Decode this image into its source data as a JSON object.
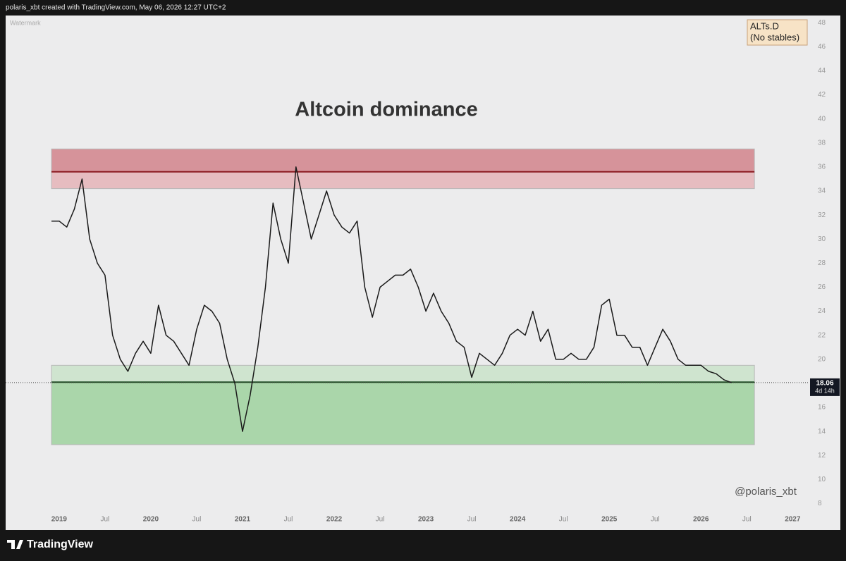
{
  "header": "polaris_xbt created with TradingView.com, May 06, 2026 12:27 UTC+2",
  "brand": "TradingView",
  "chart_data": {
    "type": "line",
    "title": "Altcoin dominance",
    "watermark": "Watermark",
    "symbol": "ALTs.D",
    "symbol_note": "(No stables)",
    "author": "@polaris_xbt",
    "color": "#1a1a1a",
    "last_price": 18.06,
    "countdown": "4d 14h",
    "x": [
      "2018-12",
      "2019-01",
      "2019-02",
      "2019-03",
      "2019-04",
      "2019-05",
      "2019-06",
      "2019-07",
      "2019-08",
      "2019-09",
      "2019-10",
      "2019-11",
      "2019-12",
      "2020-01",
      "2020-02",
      "2020-03",
      "2020-04",
      "2020-05",
      "2020-06",
      "2020-07",
      "2020-08",
      "2020-09",
      "2020-10",
      "2020-11",
      "2020-12",
      "2021-01",
      "2021-02",
      "2021-03",
      "2021-04",
      "2021-05",
      "2021-06",
      "2021-07",
      "2021-08",
      "2021-09",
      "2021-10",
      "2021-11",
      "2021-12",
      "2022-01",
      "2022-02",
      "2022-03",
      "2022-04",
      "2022-05",
      "2022-06",
      "2022-07",
      "2022-08",
      "2022-09",
      "2022-10",
      "2022-11",
      "2022-12",
      "2023-01",
      "2023-02",
      "2023-03",
      "2023-04",
      "2023-05",
      "2023-06",
      "2023-07",
      "2023-08",
      "2023-09",
      "2023-10",
      "2023-11",
      "2023-12",
      "2024-01",
      "2024-02",
      "2024-03",
      "2024-04",
      "2024-05",
      "2024-06",
      "2024-07",
      "2024-08",
      "2024-09",
      "2024-10",
      "2024-11",
      "2024-12",
      "2025-01",
      "2025-02",
      "2025-03",
      "2025-04",
      "2025-05",
      "2025-06",
      "2025-07",
      "2025-08",
      "2025-09",
      "2025-10",
      "2025-11",
      "2025-12",
      "2026-01",
      "2026-02",
      "2026-03",
      "2026-04",
      "2026-05"
    ],
    "values": [
      31.5,
      31.5,
      31,
      32.5,
      35,
      30,
      28,
      27,
      22,
      20,
      19,
      20.5,
      21.5,
      20.5,
      24.5,
      22,
      21.5,
      20.5,
      19.5,
      22.5,
      24.5,
      24,
      23,
      20,
      18,
      14,
      17,
      21,
      26,
      33,
      30,
      28,
      36,
      33,
      30,
      32,
      34,
      32,
      31,
      30.5,
      31.5,
      26,
      23.5,
      26,
      26.5,
      27,
      27,
      27.5,
      26,
      24,
      25.5,
      24,
      23,
      21.5,
      21,
      18.5,
      20.5,
      20,
      19.5,
      20.5,
      22,
      22.5,
      22,
      24,
      21.5,
      22.5,
      20,
      20,
      20.5,
      20,
      20,
      21,
      24.5,
      25,
      22,
      22,
      21,
      21,
      19.5,
      21,
      22.5,
      21.5,
      20,
      19.5,
      19.5,
      19.5,
      19,
      18.8,
      18.3,
      18.06
    ],
    "xlim": [
      "2018-06",
      "2027-03"
    ],
    "xticks": [
      {
        "value": "2019-01",
        "label": "2019"
      },
      {
        "value": "2019-07",
        "label": "Jul"
      },
      {
        "value": "2020-01",
        "label": "2020"
      },
      {
        "value": "2020-07",
        "label": "Jul"
      },
      {
        "value": "2021-01",
        "label": "2021"
      },
      {
        "value": "2021-07",
        "label": "Jul"
      },
      {
        "value": "2022-01",
        "label": "2022"
      },
      {
        "value": "2022-07",
        "label": "Jul"
      },
      {
        "value": "2023-01",
        "label": "2023"
      },
      {
        "value": "2023-07",
        "label": "Jul"
      },
      {
        "value": "2024-01",
        "label": "2024"
      },
      {
        "value": "2024-07",
        "label": "Jul"
      },
      {
        "value": "2025-01",
        "label": "2025"
      },
      {
        "value": "2025-07",
        "label": "Jul"
      },
      {
        "value": "2026-01",
        "label": "2026"
      },
      {
        "value": "2026-07",
        "label": "Jul"
      },
      {
        "value": "2027-01",
        "label": "2027"
      }
    ],
    "ylim": [
      5.8,
      48.6
    ],
    "yticks": [
      8,
      10,
      12,
      14,
      16,
      18,
      20,
      22,
      24,
      26,
      28,
      30,
      32,
      34,
      36,
      38,
      40,
      42,
      44,
      46,
      48
    ],
    "zones": [
      {
        "xrange": [
          "2018-12",
          "2026-08"
        ],
        "top": 37.5,
        "bottom": 34.2,
        "line": 35.6,
        "upper_color": "#d6939a",
        "lower_color": "#e6bcc0",
        "line_color": "#8c1c22"
      },
      {
        "xrange": [
          "2018-12",
          "2026-08"
        ],
        "top": 19.5,
        "bottom": 12.9,
        "line": 18.1,
        "upper_color": "#cfe4cf",
        "lower_color": "#aad6aa",
        "line_color": "#1f4d23"
      }
    ]
  }
}
